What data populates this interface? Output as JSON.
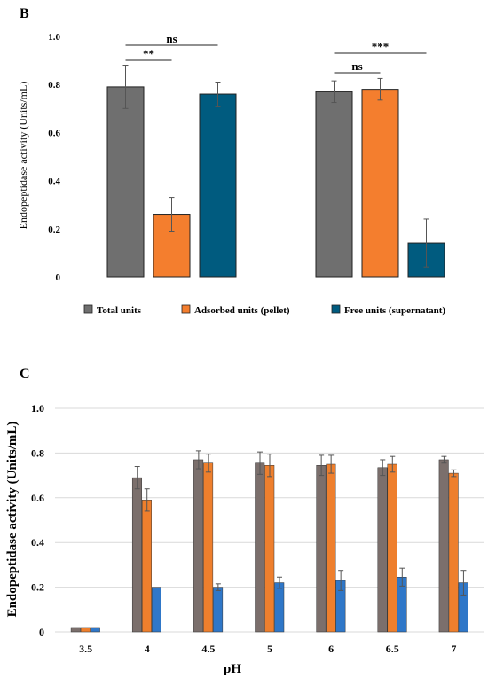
{
  "colors": {
    "total": "#6f6f6f",
    "adsorbed": "#f47e2e",
    "free_b": "#005b7f",
    "gray_c": "#7b6f6c",
    "orange_c": "#ee7f2d",
    "blue_c": "#2f77c8"
  },
  "chart_data": [
    {
      "panel": "B",
      "type": "bar",
      "ylabel": "Endopeptidase activity (Units/mL)",
      "ylim": [
        0,
        1.0
      ],
      "yticks": [
        "0",
        "0.2",
        "0.4",
        "0.6",
        "0.8",
        "1.0"
      ],
      "groups": 2,
      "series": [
        {
          "name": "Total units",
          "values": [
            0.79,
            0.77
          ],
          "errors": [
            0.09,
            0.045
          ]
        },
        {
          "name": "Adsorbed units (pellet)",
          "values": [
            0.26,
            0.78
          ],
          "errors": [
            0.07,
            0.045
          ]
        },
        {
          "name": "Free units (supernatant)",
          "values": [
            0.76,
            0.14
          ],
          "errors": [
            0.05,
            0.1
          ]
        }
      ],
      "significance": [
        {
          "label": "ns",
          "group": 0,
          "from": 0,
          "to": 2
        },
        {
          "label": "**",
          "group": 0,
          "from": 0,
          "to": 1
        },
        {
          "label": "***",
          "group": 1,
          "from": 0,
          "to": 2
        },
        {
          "label": "ns",
          "group": 1,
          "from": 0,
          "to": 1
        }
      ],
      "legend": "bottom"
    },
    {
      "panel": "C",
      "type": "bar",
      "xlabel": "pH",
      "ylabel": "Endopeptidase activity (Units/mL)",
      "ylim": [
        0,
        1.0
      ],
      "yticks": [
        "0",
        "0.2",
        "0.4",
        "0.6",
        "0.8",
        "1.0"
      ],
      "categories": [
        "3.5",
        "4",
        "4.5",
        "5",
        "6",
        "6.5",
        "7"
      ],
      "series": [
        {
          "values": [
            0.02,
            0.69,
            0.77,
            0.755,
            0.745,
            0.735,
            0.77
          ],
          "errors": [
            0,
            0.05,
            0.04,
            0.05,
            0.045,
            0.035,
            0.015
          ]
        },
        {
          "values": [
            0.02,
            0.59,
            0.755,
            0.745,
            0.75,
            0.75,
            0.71
          ],
          "errors": [
            0,
            0.05,
            0.04,
            0.05,
            0.04,
            0.035,
            0.015
          ]
        },
        {
          "values": [
            0.02,
            0.2,
            0.2,
            0.22,
            0.23,
            0.245,
            0.22
          ],
          "errors": [
            0,
            0,
            0.015,
            0.025,
            0.045,
            0.04,
            0.055
          ]
        }
      ]
    }
  ]
}
